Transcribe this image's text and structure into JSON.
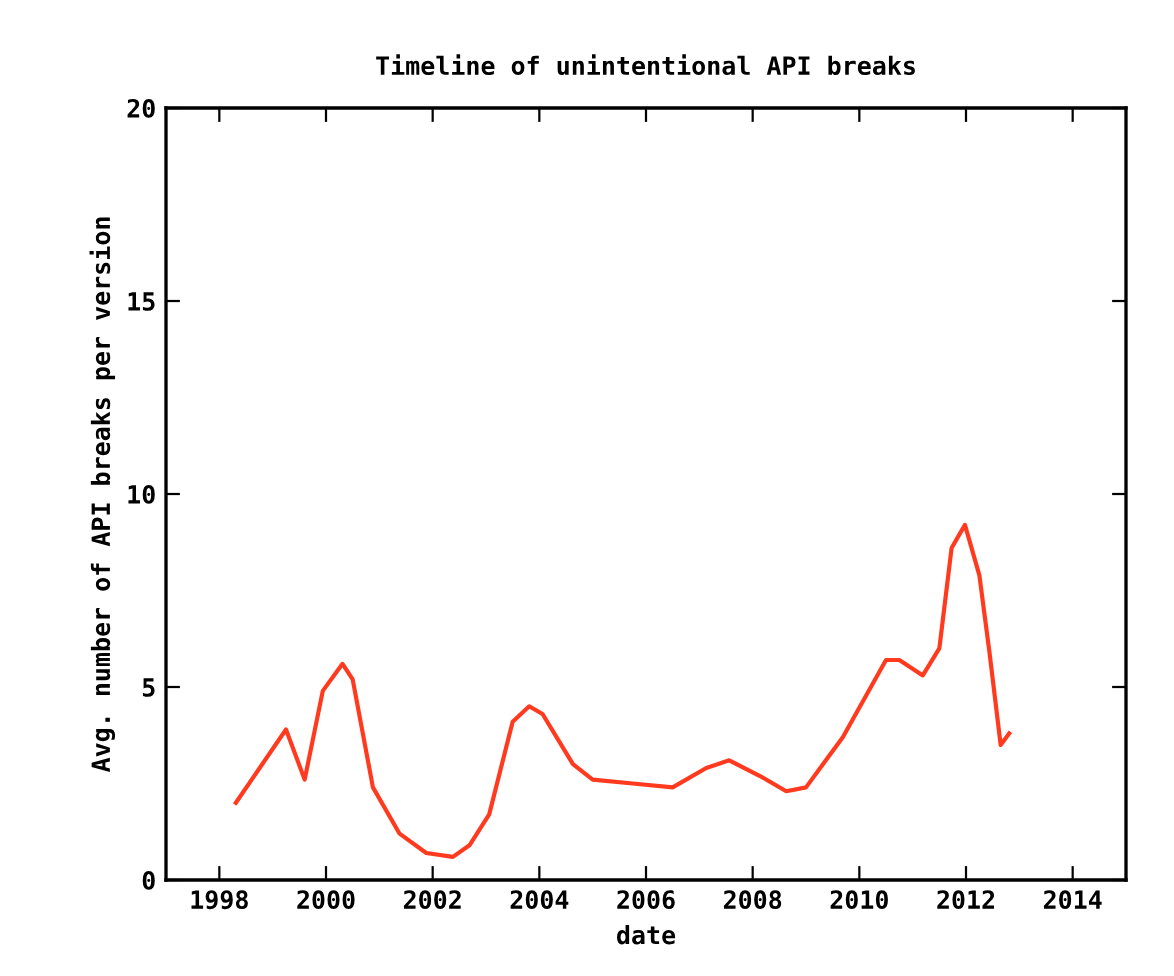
{
  "chart_data": {
    "type": "line",
    "title": "Timeline of unintentional API breaks",
    "xlabel": "date",
    "ylabel": "Avg. number of API breaks per version",
    "x": [
      1998.31,
      1999.25,
      1999.6,
      1999.94,
      2000.31,
      2000.5,
      2000.88,
      2001.38,
      2001.88,
      2002.38,
      2002.69,
      2003.06,
      2003.5,
      2003.81,
      2004.06,
      2004.63,
      2005.0,
      2005.75,
      2006.5,
      2007.13,
      2007.56,
      2008.13,
      2008.63,
      2009.0,
      2009.69,
      2010.5,
      2010.75,
      2011.19,
      2011.5,
      2011.73,
      2011.98,
      2012.25,
      2012.44,
      2012.65,
      2012.81
    ],
    "series": [
      {
        "color": "#ff3a1f",
        "values": [
          2.0,
          3.9,
          2.6,
          4.9,
          5.6,
          5.2,
          2.4,
          1.2,
          0.7,
          0.6,
          0.9,
          1.7,
          4.1,
          4.5,
          4.3,
          3.0,
          2.6,
          2.5,
          2.4,
          2.9,
          3.1,
          2.7,
          2.3,
          2.4,
          3.7,
          5.7,
          5.7,
          5.3,
          6.0,
          8.6,
          9.2,
          7.9,
          5.9,
          3.5,
          3.8
        ]
      }
    ],
    "xlim": [
      1997,
      2015
    ],
    "xticks": [
      1998,
      2000,
      2002,
      2004,
      2006,
      2008,
      2010,
      2012,
      2014
    ],
    "ylim": [
      0,
      20
    ],
    "yticks": [
      0,
      5,
      10,
      15,
      20
    ],
    "grid": false,
    "legend": false,
    "marker": "none",
    "line_style": "solid"
  }
}
